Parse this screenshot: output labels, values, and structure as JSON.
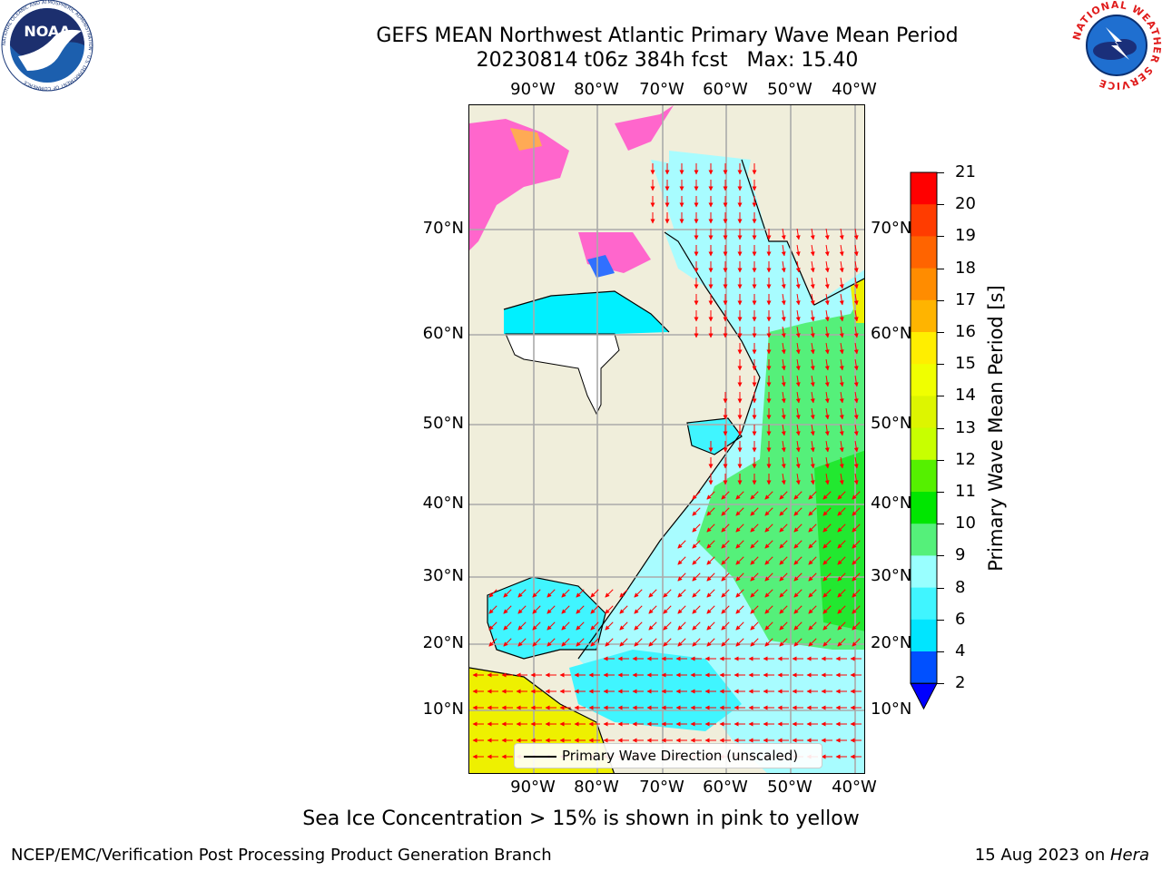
{
  "header": {
    "title_line1": "GEFS MEAN Northwest Atlantic Primary Wave Mean Period",
    "title_line2": "20230814 t06z 384h fcst   Max: 15.40"
  },
  "logos": {
    "left": {
      "name": "noaa-logo",
      "text": "NOAA",
      "ring_text": "NATIONAL OCEANIC AND ATMOSPHERIC ADMINISTRATION · U.S. DEPARTMENT OF COMMERCE"
    },
    "right": {
      "name": "nws-logo",
      "ring_text": "NATIONAL WEATHER SERVICE"
    }
  },
  "map": {
    "lon_labels": [
      "90°W",
      "80°W",
      "70°W",
      "60°W",
      "50°W",
      "40°W"
    ],
    "lat_labels": [
      "70°N",
      "60°N",
      "50°N",
      "40°N",
      "30°N",
      "20°N",
      "10°N"
    ],
    "legend_label": "Primary Wave Direction (unscaled)",
    "land_color": "#f0eedb",
    "arrow_color": "#ff0000"
  },
  "colorbar": {
    "label": "Primary Wave Mean Period [s]",
    "ticks": [
      "2",
      "4",
      "6",
      "8",
      "9",
      "10",
      "11",
      "12",
      "13",
      "14",
      "15",
      "16",
      "17",
      "18",
      "19",
      "20",
      "21"
    ],
    "colors": [
      "#0050ff",
      "#00e5ff",
      "#40f5ff",
      "#99ffff",
      "#55f07a",
      "#00e600",
      "#55f000",
      "#c8ff00",
      "#ddf500",
      "#f0ff00",
      "#ffee00",
      "#ffb400",
      "#ff8c00",
      "#ff6400",
      "#ff3c00",
      "#ff0000"
    ],
    "under_color": "#0000ff"
  },
  "footer": {
    "note": "Sea Ice Concentration > 15% is shown in pink to yellow",
    "credit_left": "NCEP/EMC/Verification Post Processing Product Generation Branch",
    "credit_right_date": "15 Aug 2023 on ",
    "credit_right_host": "Hera"
  }
}
